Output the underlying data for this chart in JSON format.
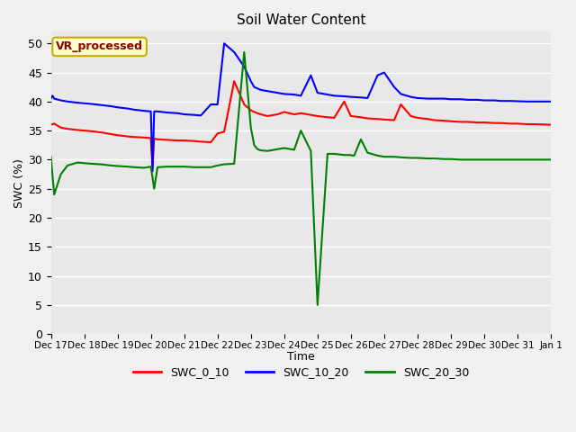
{
  "title": "Soil Water Content",
  "xlabel": "Time",
  "ylabel": "SWC (%)",
  "background_color": "#e8e8e8",
  "figure_color": "#f0f0f0",
  "annotation_text": "VR_processed",
  "annotation_color": "#8B0000",
  "annotation_bg": "#ffffcc",
  "annotation_border": "#ccaa00",
  "legend_labels": [
    "SWC_0_10",
    "SWC_10_20",
    "SWC_20_30"
  ],
  "line_colors": [
    "red",
    "blue",
    "green"
  ],
  "line_width": 1.5,
  "swc_0_10_x": [
    0,
    0.1,
    0.3,
    0.5,
    0.8,
    1.0,
    1.2,
    1.5,
    1.8,
    2.0,
    2.3,
    2.5,
    2.8,
    3.0,
    3.05,
    3.1,
    3.2,
    3.5,
    3.8,
    4.0,
    4.3,
    4.5,
    4.8,
    5.0,
    5.2,
    5.5,
    5.8,
    6.0,
    6.1,
    6.3,
    6.5,
    6.8,
    7.0,
    7.3,
    7.5,
    7.8,
    8.0,
    8.3,
    8.5,
    8.8,
    9.0,
    9.3,
    9.5,
    9.8,
    10.0,
    10.3,
    10.5,
    10.8,
    11.0,
    11.3,
    11.5,
    11.8,
    12.0,
    12.3,
    12.5,
    12.8,
    13.0,
    13.3,
    13.5,
    13.8,
    14.0,
    14.3,
    14.5,
    14.8,
    15.0
  ],
  "swc_0_10": [
    36,
    36.2,
    35.5,
    35.3,
    35.1,
    35.0,
    34.9,
    34.7,
    34.4,
    34.2,
    34.0,
    33.9,
    33.8,
    33.7,
    28.5,
    33.6,
    33.5,
    33.4,
    33.3,
    33.3,
    33.2,
    33.1,
    33.0,
    34.5,
    34.8,
    43.5,
    39.5,
    38.5,
    38.2,
    37.8,
    37.5,
    37.8,
    38.2,
    37.8,
    38.0,
    37.7,
    37.5,
    37.3,
    37.2,
    40.0,
    37.5,
    37.3,
    37.1,
    37.0,
    36.9,
    36.8,
    39.5,
    37.5,
    37.2,
    37.0,
    36.8,
    36.7,
    36.6,
    36.5,
    36.5,
    36.4,
    36.4,
    36.3,
    36.3,
    36.2,
    36.2,
    36.1,
    36.1,
    36.05,
    36.0
  ],
  "swc_10_20_x": [
    0,
    0.05,
    0.1,
    0.3,
    0.5,
    0.8,
    1.0,
    1.2,
    1.5,
    1.8,
    2.0,
    2.3,
    2.5,
    2.8,
    3.0,
    3.05,
    3.1,
    3.2,
    3.5,
    3.8,
    4.0,
    4.3,
    4.5,
    4.8,
    5.0,
    5.2,
    5.5,
    5.8,
    6.0,
    6.1,
    6.3,
    6.5,
    6.8,
    7.0,
    7.3,
    7.5,
    7.8,
    8.0,
    8.3,
    8.5,
    8.8,
    9.0,
    9.3,
    9.5,
    9.8,
    10.0,
    10.3,
    10.5,
    10.8,
    11.0,
    11.3,
    11.5,
    11.8,
    12.0,
    12.3,
    12.5,
    12.8,
    13.0,
    13.3,
    13.5,
    13.8,
    14.0,
    14.3,
    14.5,
    14.8,
    15.0
  ],
  "swc_10_20": [
    40.5,
    41.0,
    40.5,
    40.2,
    40.0,
    39.8,
    39.7,
    39.6,
    39.4,
    39.2,
    39.0,
    38.8,
    38.6,
    38.4,
    38.3,
    28.0,
    38.3,
    38.3,
    38.1,
    38.0,
    37.8,
    37.7,
    37.6,
    39.5,
    39.5,
    50.0,
    48.5,
    46.0,
    43.5,
    42.5,
    42.0,
    41.8,
    41.5,
    41.3,
    41.2,
    41.0,
    44.5,
    41.5,
    41.2,
    41.0,
    40.9,
    40.8,
    40.7,
    40.6,
    44.5,
    45.0,
    42.5,
    41.3,
    40.8,
    40.6,
    40.5,
    40.5,
    40.5,
    40.4,
    40.4,
    40.3,
    40.3,
    40.2,
    40.2,
    40.1,
    40.1,
    40.05,
    40.0,
    40.0,
    40.0,
    40.0
  ],
  "swc_20_30_x": [
    0,
    0.1,
    0.3,
    0.5,
    0.8,
    1.0,
    1.2,
    1.5,
    1.8,
    2.0,
    2.3,
    2.5,
    2.8,
    3.0,
    3.1,
    3.2,
    3.5,
    3.8,
    4.0,
    4.3,
    4.5,
    4.8,
    5.0,
    5.2,
    5.5,
    5.8,
    6.0,
    6.1,
    6.2,
    6.3,
    6.5,
    6.8,
    7.0,
    7.3,
    7.5,
    7.8,
    8.0,
    8.3,
    8.5,
    8.8,
    9.0,
    9.05,
    9.1,
    9.3,
    9.5,
    9.8,
    10.0,
    10.3,
    10.5,
    10.8,
    11.0,
    11.3,
    11.5,
    11.8,
    12.0,
    12.3,
    12.5,
    12.8,
    13.0,
    13.3,
    13.5,
    13.8,
    14.0,
    14.3,
    14.5,
    14.8,
    15.0
  ],
  "swc_20_30": [
    30.5,
    24.0,
    27.5,
    29.0,
    29.5,
    29.4,
    29.3,
    29.2,
    29.0,
    28.9,
    28.8,
    28.7,
    28.6,
    28.8,
    25.0,
    28.7,
    28.8,
    28.8,
    28.8,
    28.7,
    28.7,
    28.7,
    29.0,
    29.2,
    29.3,
    48.5,
    35.5,
    32.5,
    31.8,
    31.6,
    31.5,
    31.8,
    32.0,
    31.7,
    35.0,
    31.5,
    5.0,
    31.0,
    31.0,
    30.8,
    30.8,
    30.7,
    30.7,
    33.5,
    31.2,
    30.7,
    30.5,
    30.5,
    30.4,
    30.3,
    30.3,
    30.2,
    30.2,
    30.1,
    30.1,
    30.0,
    30.0,
    30.0,
    30.0,
    30.0,
    30.0,
    30.0,
    30.0,
    30.0,
    30.0,
    30.0,
    30.0
  ],
  "ytick_values": [
    0,
    5,
    10,
    15,
    20,
    25,
    30,
    35,
    40,
    45,
    50
  ],
  "grid_color": "#ffffff",
  "grid_linewidth": 1.0,
  "xlim_days": 15.0
}
